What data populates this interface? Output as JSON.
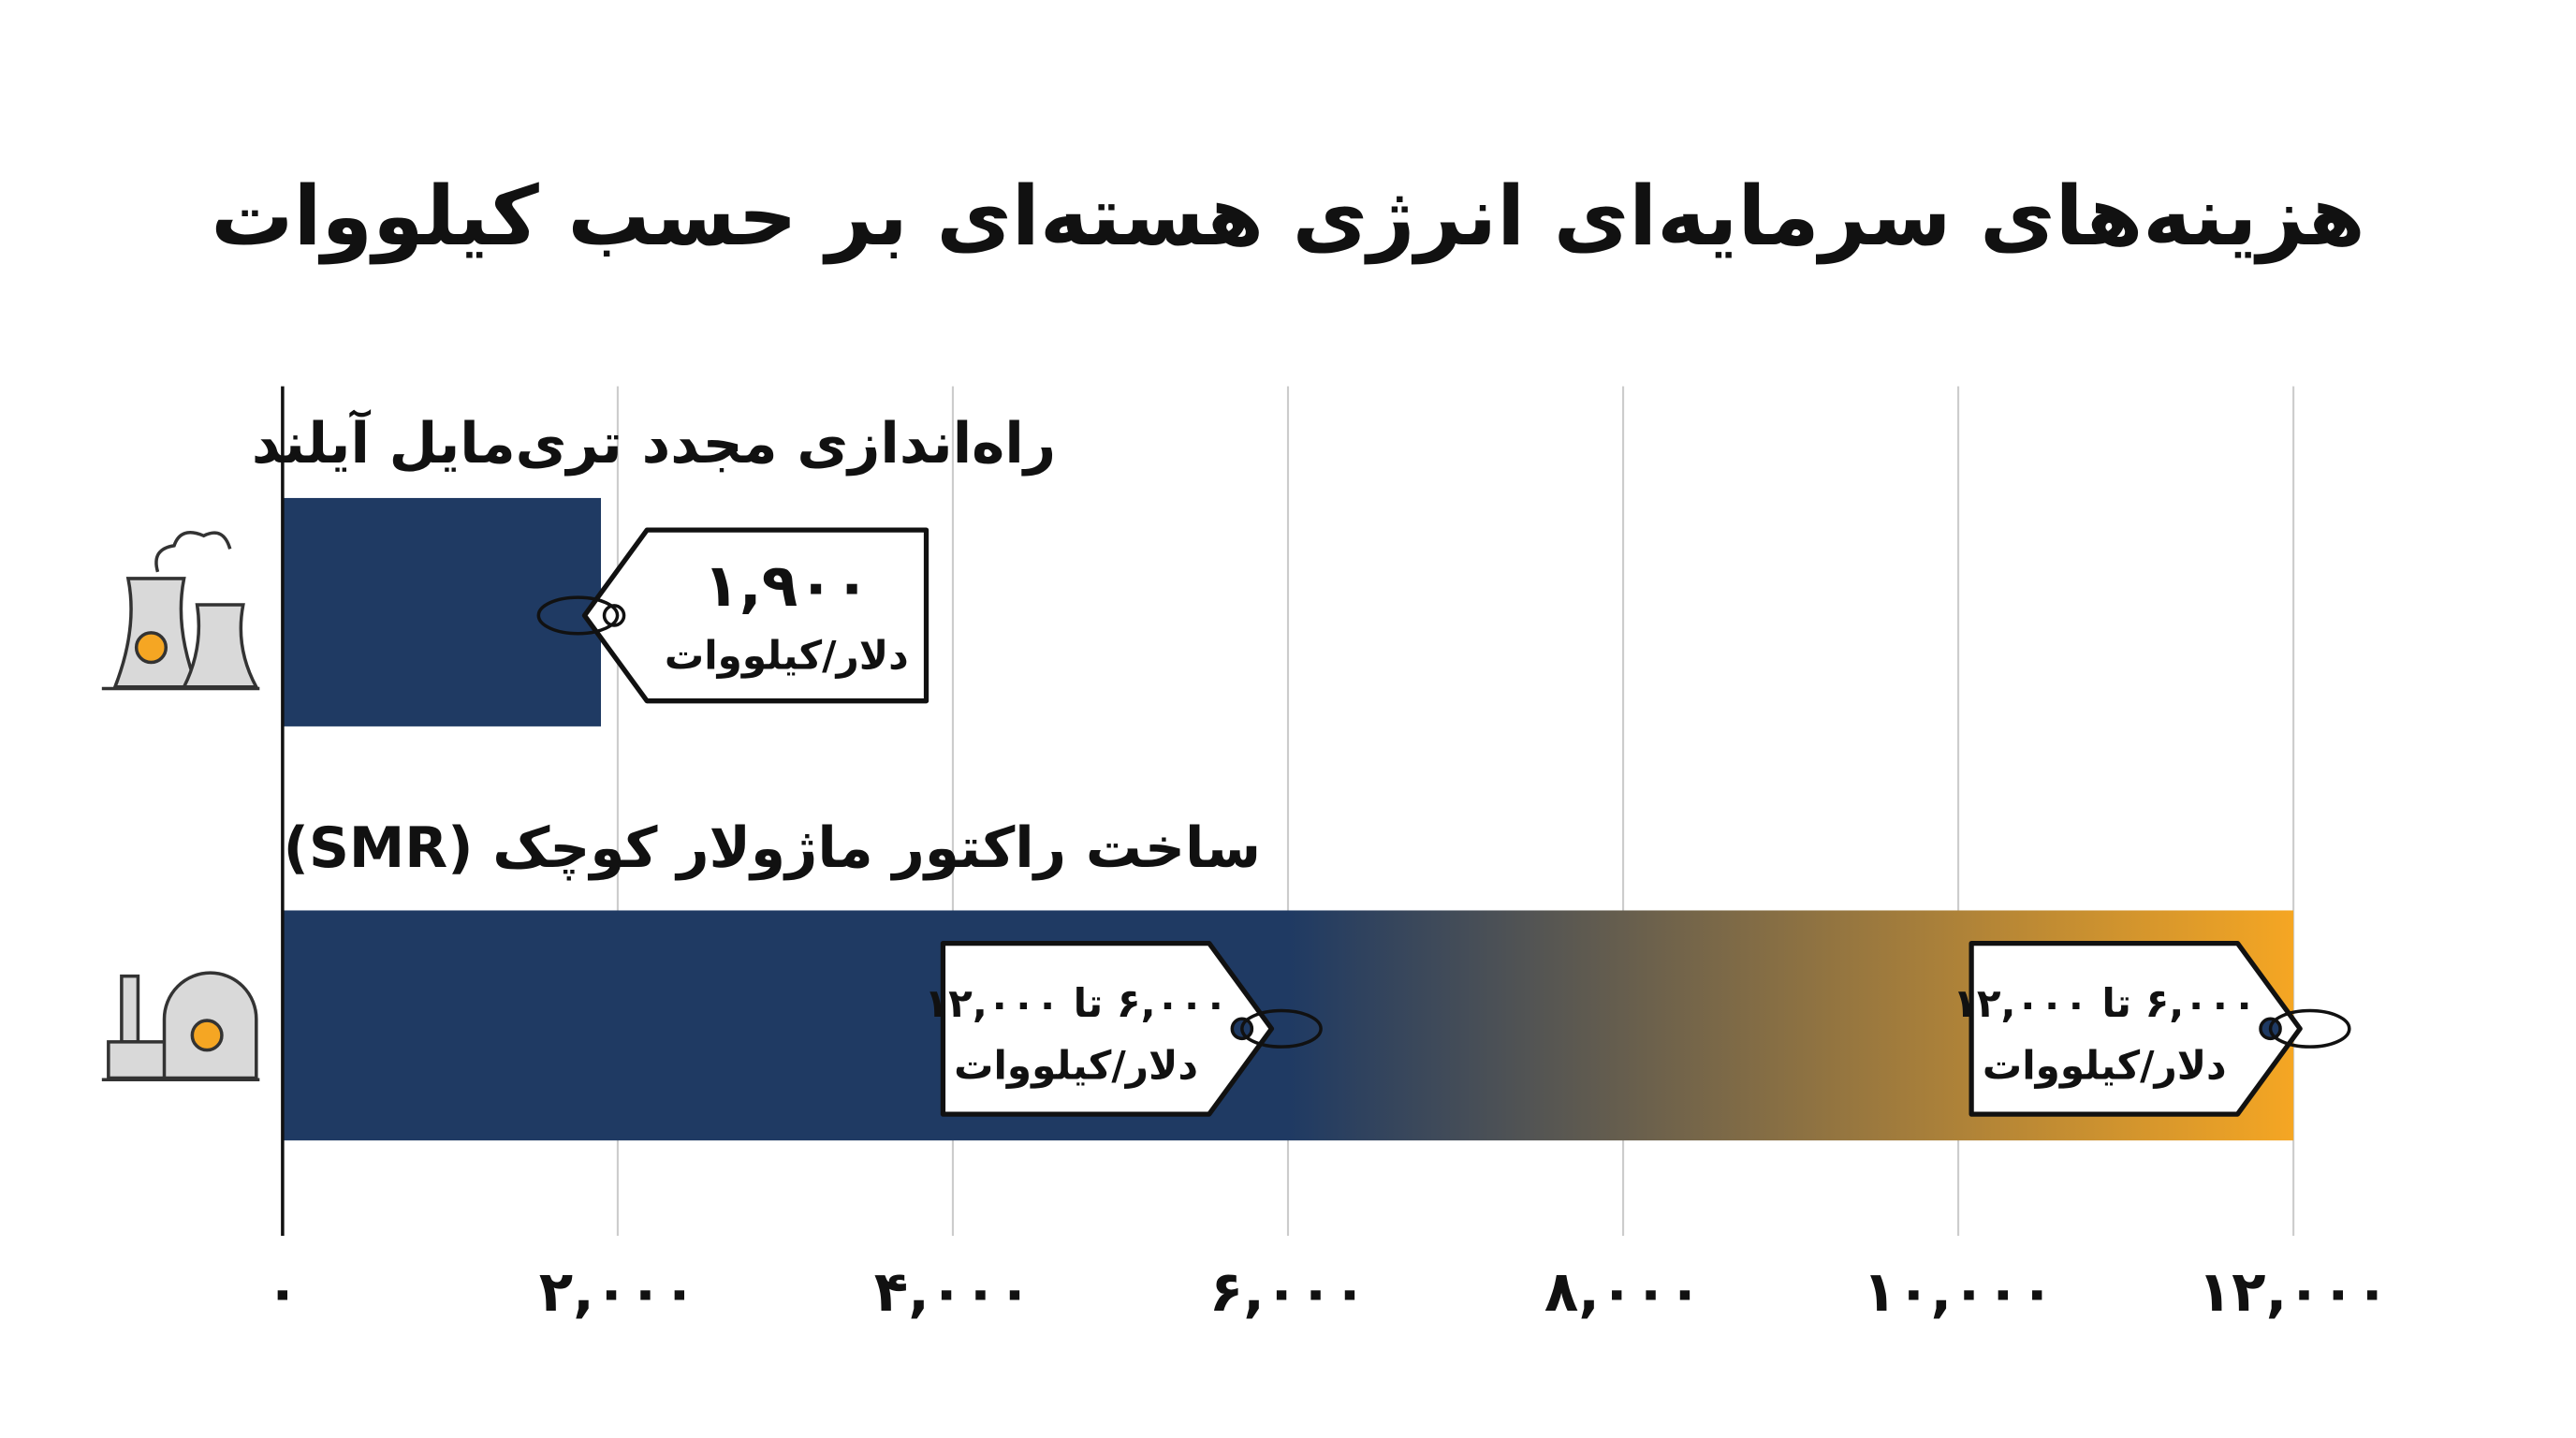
{
  "chart_data": {
    "type": "bar",
    "orientation": "horizontal",
    "title": "هزینه‌های سرمایه‌ای انرژی هسته‌ای بر حسب کیلووات",
    "categories": [
      "راه‌اندازی مجدد تری‌مایل آیلند",
      "ساخت راکتور ماژولار کوچک (SMR)"
    ],
    "values": [
      1900,
      12000
    ],
    "gradient_start": [
      null,
      6000
    ],
    "value_labels": [
      "۱,۹۰۰",
      "۶,۰۰۰ تا ۱۲,۰۰۰"
    ],
    "unit_label": "دلار/کیلووات",
    "color": "#1f3a63",
    "gradient_color": "#f5a623",
    "xlim": [
      0,
      12000
    ],
    "xticks": [
      {
        "value": 0,
        "label": "۰"
      },
      {
        "value": 2000,
        "label": "۲,۰۰۰"
      },
      {
        "value": 4000,
        "label": "۴,۰۰۰"
      },
      {
        "value": 6000,
        "label": "۶,۰۰۰"
      },
      {
        "value": 8000,
        "label": "۸,۰۰۰"
      },
      {
        "value": 10000,
        "label": "۱۰,۰۰۰"
      },
      {
        "value": 12000,
        "label": "۱۲,۰۰۰"
      }
    ],
    "grid": true
  }
}
